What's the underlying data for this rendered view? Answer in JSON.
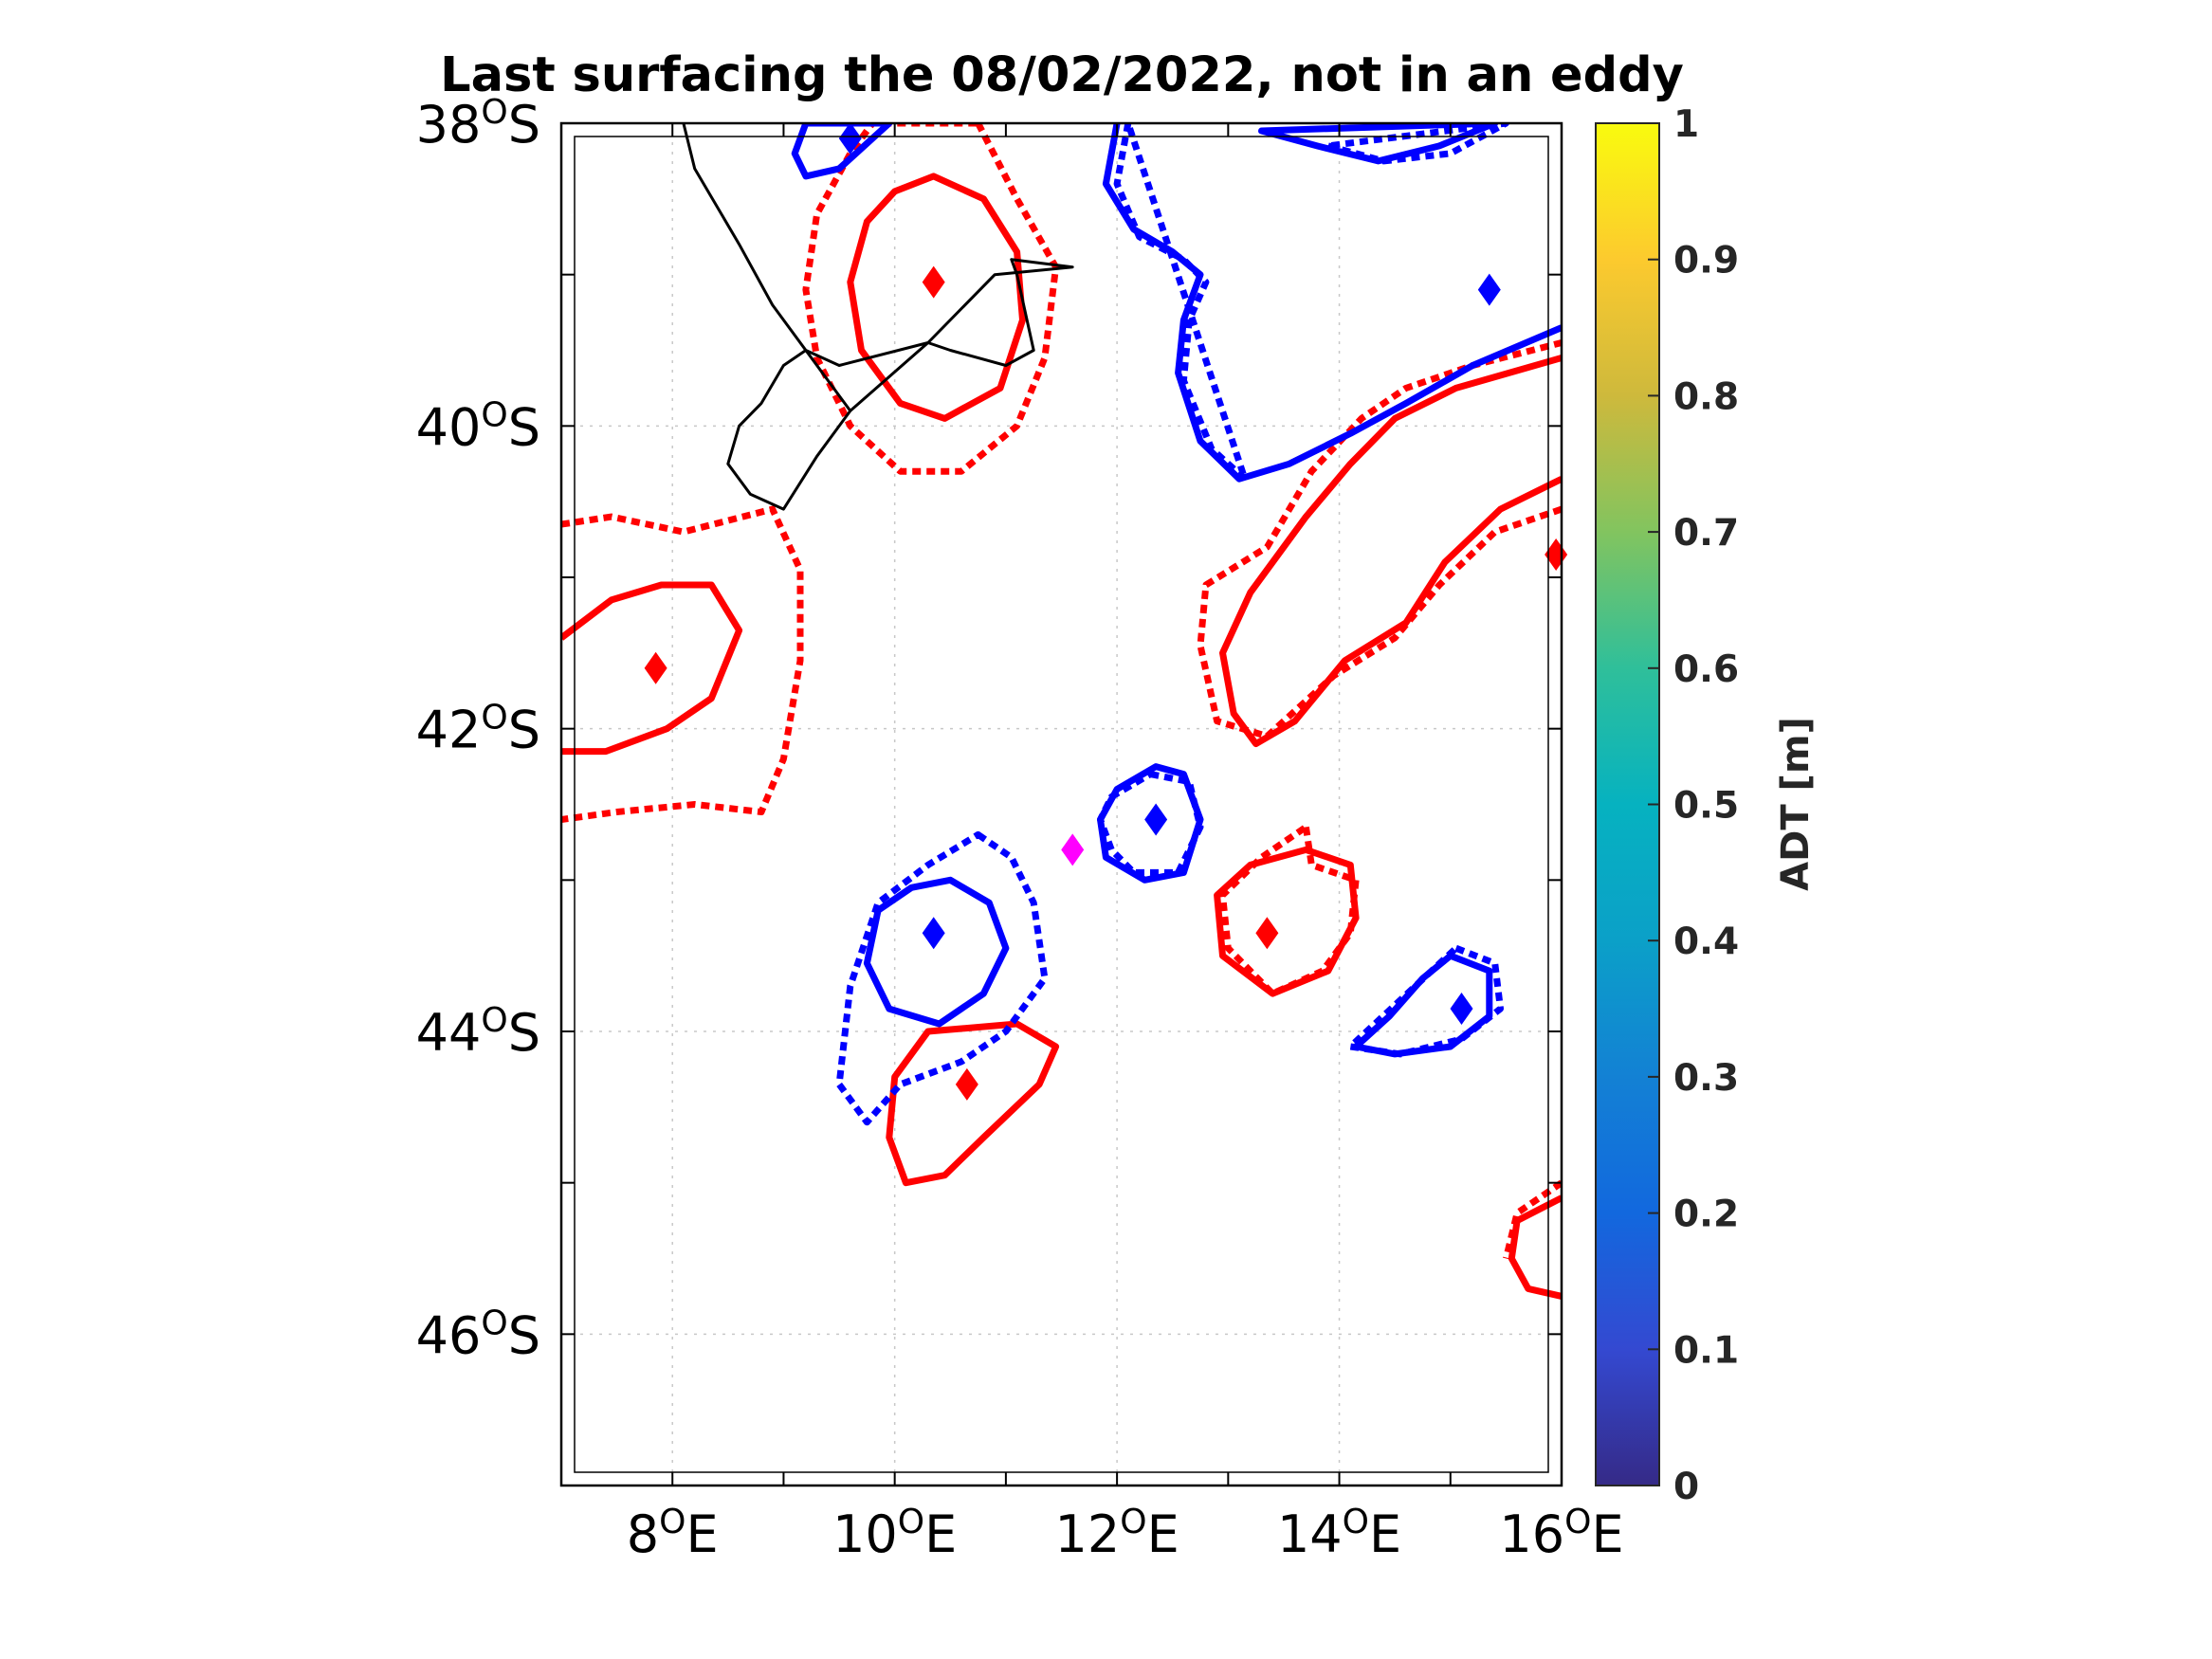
{
  "chart_data": {
    "type": "map",
    "title": "Last surfacing the 08/02/2022, not in an eddy",
    "x_ticks": [
      {
        "value": 8,
        "label": "8",
        "hemi": "E"
      },
      {
        "value": 10,
        "label": "10",
        "hemi": "E"
      },
      {
        "value": 12,
        "label": "12",
        "hemi": "E"
      },
      {
        "value": 14,
        "label": "14",
        "hemi": "E"
      },
      {
        "value": 16,
        "label": "16",
        "hemi": "E"
      }
    ],
    "y_ticks": [
      {
        "value": -38,
        "label": "38",
        "hemi": "S"
      },
      {
        "value": -40,
        "label": "40",
        "hemi": "S"
      },
      {
        "value": -42,
        "label": "42",
        "hemi": "S"
      },
      {
        "value": -44,
        "label": "44",
        "hemi": "S"
      },
      {
        "value": -46,
        "label": "46",
        "hemi": "S"
      }
    ],
    "xlim": [
      7,
      16
    ],
    "ylim": [
      -47,
      -38
    ],
    "grid": true,
    "colorbar": {
      "label": "ADT [m]",
      "range": [
        0,
        1
      ],
      "ticks": [
        "0",
        "0.1",
        "0.2",
        "0.3",
        "0.4",
        "0.5",
        "0.6",
        "0.7",
        "0.8",
        "0.9",
        "1"
      ],
      "colormap": "parula"
    },
    "colors": {
      "anticyclonic": "#ff0000",
      "cyclonic": "#0000ff",
      "float": "#ff00ff",
      "trajectory": "#000000"
    },
    "eddy_centers": [
      {
        "type": "anticyclonic",
        "lon": 10.35,
        "lat": -39.05
      },
      {
        "type": "anticyclonic",
        "lon": 7.85,
        "lat": -41.6
      },
      {
        "type": "anticyclonic",
        "lon": 13.35,
        "lat": -43.35
      },
      {
        "type": "anticyclonic",
        "lon": 10.65,
        "lat": -44.35
      },
      {
        "type": "anticyclonic",
        "lon": 15.95,
        "lat": -40.85
      },
      {
        "type": "cyclonic",
        "lon": 9.6,
        "lat": -38.1
      },
      {
        "type": "cyclonic",
        "lon": 15.35,
        "lat": -39.1
      },
      {
        "type": "cyclonic",
        "lon": 12.35,
        "lat": -42.6
      },
      {
        "type": "cyclonic",
        "lon": 10.35,
        "lat": -43.35
      },
      {
        "type": "cyclonic",
        "lon": 15.1,
        "lat": -43.85
      }
    ],
    "float_position": {
      "lon": 11.6,
      "lat": -42.8
    },
    "trajectory": [
      [
        8.1,
        -38.0
      ],
      [
        8.2,
        -38.3
      ],
      [
        8.6,
        -38.8
      ],
      [
        8.9,
        -39.2
      ],
      [
        9.2,
        -39.5
      ],
      [
        9.5,
        -39.6
      ],
      [
        10.3,
        -39.45
      ],
      [
        10.5,
        -39.5
      ],
      [
        11.0,
        -39.6
      ],
      [
        11.25,
        -39.5
      ],
      [
        11.1,
        -39.0
      ],
      [
        11.05,
        -38.9
      ],
      [
        11.6,
        -38.95
      ],
      [
        10.9,
        -39.0
      ],
      [
        10.3,
        -39.45
      ],
      [
        9.6,
        -39.9
      ],
      [
        9.3,
        -40.2
      ],
      [
        9.0,
        -40.55
      ],
      [
        8.7,
        -40.45
      ],
      [
        8.5,
        -40.25
      ],
      [
        8.6,
        -40.0
      ],
      [
        8.8,
        -39.85
      ],
      [
        9.0,
        -39.6
      ],
      [
        9.2,
        -39.5
      ],
      [
        9.6,
        -39.9
      ],
      [
        10.3,
        -39.45
      ],
      [
        10.5,
        -39.5
      ]
    ],
    "contours": [
      {
        "type": "anticyclonic",
        "style": "solid",
        "points": [
          [
            10.35,
            -38.35
          ],
          [
            10.8,
            -38.5
          ],
          [
            11.1,
            -38.85
          ],
          [
            11.15,
            -39.3
          ],
          [
            10.95,
            -39.75
          ],
          [
            10.45,
            -39.95
          ],
          [
            10.05,
            -39.85
          ],
          [
            9.7,
            -39.5
          ],
          [
            9.6,
            -39.05
          ],
          [
            9.75,
            -38.65
          ],
          [
            10.0,
            -38.45
          ]
        ]
      },
      {
        "type": "anticyclonic",
        "style": "dotted",
        "points": [
          [
            10.75,
            -38.0
          ],
          [
            11.1,
            -38.5
          ],
          [
            11.45,
            -38.95
          ],
          [
            11.35,
            -39.55
          ],
          [
            11.1,
            -40.0
          ],
          [
            10.6,
            -40.3
          ],
          [
            10.05,
            -40.3
          ],
          [
            9.6,
            -40.0
          ],
          [
            9.3,
            -39.55
          ],
          [
            9.2,
            -39.1
          ],
          [
            9.3,
            -38.6
          ],
          [
            9.6,
            -38.2
          ],
          [
            9.8,
            -38.0
          ]
        ]
      },
      {
        "type": "anticyclonic",
        "style": "solid",
        "points": [
          [
            7.0,
            -41.4
          ],
          [
            7.45,
            -41.15
          ],
          [
            7.9,
            -41.05
          ],
          [
            8.35,
            -41.05
          ],
          [
            8.6,
            -41.35
          ],
          [
            8.35,
            -41.8
          ],
          [
            7.95,
            -42.0
          ],
          [
            7.4,
            -42.15
          ],
          [
            7.0,
            -42.15
          ]
        ]
      },
      {
        "type": "anticyclonic",
        "style": "dotted",
        "points": [
          [
            7.0,
            -40.65
          ],
          [
            7.45,
            -40.6
          ],
          [
            8.1,
            -40.7
          ],
          [
            8.9,
            -40.55
          ],
          [
            9.15,
            -40.95
          ],
          [
            9.15,
            -41.55
          ],
          [
            9.0,
            -42.2
          ],
          [
            8.8,
            -42.55
          ],
          [
            8.2,
            -42.5
          ],
          [
            7.5,
            -42.55
          ],
          [
            7.0,
            -42.6
          ]
        ]
      },
      {
        "type": "anticyclonic",
        "style": "solid",
        "points": [
          [
            16.0,
            -40.35
          ],
          [
            15.45,
            -40.55
          ],
          [
            14.95,
            -40.9
          ],
          [
            14.6,
            -41.3
          ],
          [
            14.05,
            -41.55
          ],
          [
            13.6,
            -41.95
          ],
          [
            13.25,
            -42.1
          ],
          [
            13.05,
            -41.9
          ],
          [
            12.95,
            -41.5
          ],
          [
            13.2,
            -41.1
          ],
          [
            13.7,
            -40.6
          ],
          [
            14.1,
            -40.25
          ],
          [
            14.5,
            -39.95
          ],
          [
            15.05,
            -39.75
          ],
          [
            16.0,
            -39.55
          ]
        ]
      },
      {
        "type": "anticyclonic",
        "style": "dotted",
        "points": [
          [
            16.0,
            -40.55
          ],
          [
            15.4,
            -40.7
          ],
          [
            14.9,
            -41.05
          ],
          [
            14.5,
            -41.4
          ],
          [
            13.95,
            -41.65
          ],
          [
            13.35,
            -42.05
          ],
          [
            12.9,
            -41.95
          ],
          [
            12.75,
            -41.45
          ],
          [
            12.8,
            -41.05
          ],
          [
            13.35,
            -40.8
          ],
          [
            13.75,
            -40.3
          ],
          [
            14.2,
            -39.95
          ],
          [
            14.6,
            -39.75
          ],
          [
            15.2,
            -39.6
          ],
          [
            16.0,
            -39.45
          ]
        ]
      },
      {
        "type": "anticyclonic",
        "style": "solid",
        "points": [
          [
            13.7,
            -42.8
          ],
          [
            14.1,
            -42.9
          ],
          [
            14.15,
            -43.25
          ],
          [
            13.9,
            -43.6
          ],
          [
            13.4,
            -43.75
          ],
          [
            12.95,
            -43.5
          ],
          [
            12.9,
            -43.1
          ],
          [
            13.2,
            -42.9
          ]
        ]
      },
      {
        "type": "anticyclonic",
        "style": "dotted",
        "points": [
          [
            13.7,
            -42.65
          ],
          [
            13.75,
            -42.9
          ],
          [
            14.15,
            -43.0
          ],
          [
            14.1,
            -43.35
          ],
          [
            13.85,
            -43.6
          ],
          [
            13.4,
            -43.75
          ],
          [
            13.0,
            -43.45
          ],
          [
            12.95,
            -43.1
          ],
          [
            13.3,
            -42.85
          ]
        ]
      },
      {
        "type": "anticyclonic",
        "style": "solid",
        "points": [
          [
            10.3,
            -44.0
          ],
          [
            11.1,
            -43.95
          ],
          [
            11.45,
            -44.1
          ],
          [
            11.3,
            -44.35
          ],
          [
            10.8,
            -44.7
          ],
          [
            10.45,
            -44.95
          ],
          [
            10.1,
            -45.0
          ],
          [
            9.95,
            -44.7
          ],
          [
            10.0,
            -44.3
          ]
        ]
      },
      {
        "type": "anticyclonic",
        "style": "solid",
        "points": [
          [
            16.0,
            -45.1
          ],
          [
            15.6,
            -45.25
          ],
          [
            15.55,
            -45.5
          ],
          [
            15.7,
            -45.7
          ],
          [
            16.0,
            -45.75
          ]
        ]
      },
      {
        "type": "anticyclonic",
        "style": "dotted",
        "points": [
          [
            16.0,
            -45.0
          ],
          [
            15.6,
            -45.2
          ],
          [
            15.5,
            -45.5
          ]
        ]
      },
      {
        "type": "cyclonic",
        "style": "solid",
        "points": [
          [
            9.2,
            -38.0
          ],
          [
            9.1,
            -38.2
          ],
          [
            9.2,
            -38.35
          ],
          [
            9.5,
            -38.3
          ],
          [
            9.8,
            -38.1
          ],
          [
            9.95,
            -38.0
          ]
        ]
      },
      {
        "type": "cyclonic",
        "style": "solid",
        "points": [
          [
            12.0,
            -38.0
          ],
          [
            11.9,
            -38.4
          ],
          [
            12.15,
            -38.7
          ],
          [
            12.5,
            -38.85
          ],
          [
            12.75,
            -39.0
          ],
          [
            12.6,
            -39.3
          ],
          [
            12.55,
            -39.65
          ],
          [
            12.75,
            -40.1
          ],
          [
            13.1,
            -40.35
          ],
          [
            13.55,
            -40.25
          ],
          [
            14.1,
            -40.05
          ],
          [
            14.6,
            -39.85
          ],
          [
            15.2,
            -39.6
          ],
          [
            16.0,
            -39.35
          ]
        ]
      },
      {
        "type": "cyclonic",
        "style": "dotted",
        "points": [
          [
            12.1,
            -38.0
          ],
          [
            12.0,
            -38.4
          ],
          [
            12.2,
            -38.75
          ],
          [
            12.6,
            -38.9
          ],
          [
            12.8,
            -39.05
          ],
          [
            12.65,
            -39.3
          ],
          [
            12.6,
            -39.7
          ],
          [
            12.85,
            -40.15
          ],
          [
            13.15,
            -40.35
          ]
        ]
      },
      {
        "type": "cyclonic",
        "style": "solid",
        "points": [
          [
            13.3,
            -38.05
          ],
          [
            13.8,
            -38.15
          ],
          [
            14.35,
            -38.25
          ],
          [
            14.9,
            -38.15
          ],
          [
            15.4,
            -38.0
          ]
        ]
      },
      {
        "type": "cyclonic",
        "style": "dotted",
        "points": [
          [
            13.9,
            -38.15
          ],
          [
            14.4,
            -38.25
          ],
          [
            15.0,
            -38.2
          ],
          [
            15.5,
            -38.0
          ]
        ]
      },
      {
        "type": "cyclonic",
        "style": "solid",
        "points": [
          [
            12.35,
            -42.25
          ],
          [
            12.6,
            -42.3
          ],
          [
            12.75,
            -42.6
          ],
          [
            12.6,
            -42.95
          ],
          [
            12.25,
            -43.0
          ],
          [
            11.9,
            -42.85
          ],
          [
            11.85,
            -42.6
          ],
          [
            12.0,
            -42.4
          ]
        ]
      },
      {
        "type": "cyclonic",
        "style": "dotted",
        "points": [
          [
            12.3,
            -42.3
          ],
          [
            12.65,
            -42.35
          ],
          [
            12.75,
            -42.65
          ],
          [
            12.55,
            -42.95
          ],
          [
            12.15,
            -42.95
          ],
          [
            11.95,
            -42.8
          ],
          [
            11.85,
            -42.6
          ],
          [
            11.95,
            -42.45
          ]
        ]
      },
      {
        "type": "cyclonic",
        "style": "solid",
        "points": [
          [
            10.5,
            -43.0
          ],
          [
            10.85,
            -43.15
          ],
          [
            11.0,
            -43.45
          ],
          [
            10.8,
            -43.75
          ],
          [
            10.4,
            -43.95
          ],
          [
            9.95,
            -43.85
          ],
          [
            9.75,
            -43.55
          ],
          [
            9.85,
            -43.2
          ],
          [
            10.15,
            -43.05
          ]
        ]
      },
      {
        "type": "cyclonic",
        "style": "dotted",
        "points": [
          [
            10.75,
            -42.7
          ],
          [
            11.05,
            -42.85
          ],
          [
            11.25,
            -43.15
          ],
          [
            11.35,
            -43.65
          ],
          [
            11.0,
            -44.0
          ],
          [
            10.6,
            -44.2
          ],
          [
            10.05,
            -44.35
          ],
          [
            9.75,
            -44.6
          ],
          [
            9.5,
            -44.35
          ],
          [
            9.6,
            -43.7
          ],
          [
            9.85,
            -43.15
          ],
          [
            10.3,
            -42.9
          ]
        ]
      },
      {
        "type": "cyclonic",
        "style": "solid",
        "points": [
          [
            15.0,
            -43.5
          ],
          [
            15.35,
            -43.6
          ],
          [
            15.35,
            -43.9
          ],
          [
            15.0,
            -44.1
          ],
          [
            14.5,
            -44.15
          ],
          [
            14.15,
            -44.1
          ],
          [
            14.45,
            -43.9
          ],
          [
            14.75,
            -43.65
          ]
        ]
      },
      {
        "type": "cyclonic",
        "style": "dotted",
        "points": [
          [
            15.05,
            -43.45
          ],
          [
            15.4,
            -43.55
          ],
          [
            15.45,
            -43.85
          ],
          [
            15.1,
            -44.05
          ],
          [
            14.55,
            -44.15
          ],
          [
            14.1,
            -44.1
          ]
        ]
      }
    ]
  }
}
